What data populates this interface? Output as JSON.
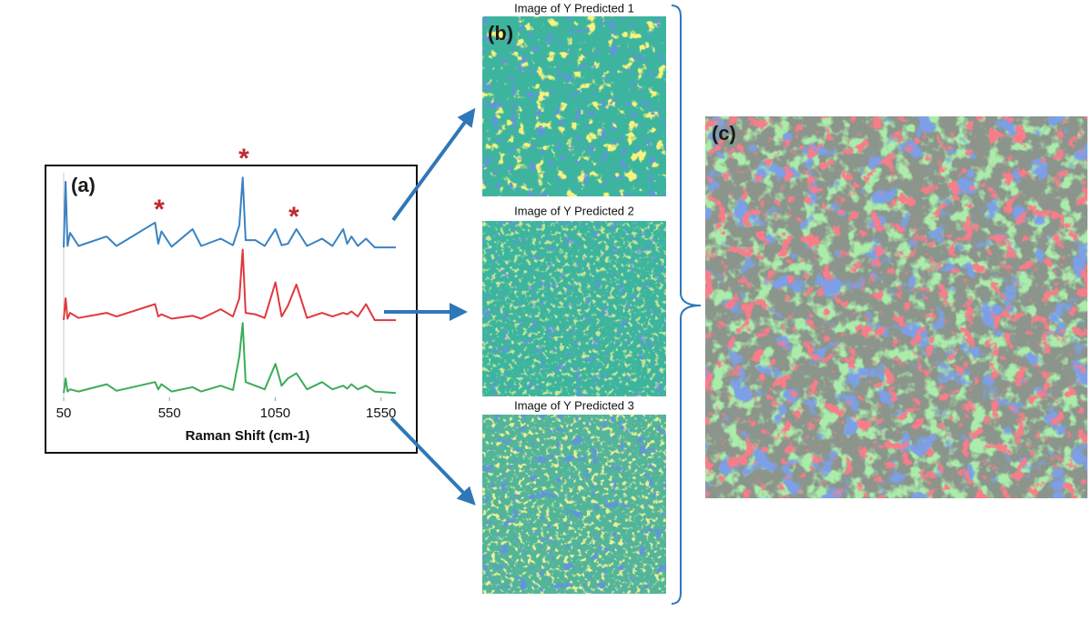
{
  "chart_data": {
    "type": "line",
    "panel_label": "(a)",
    "xlabel": "Raman Shift (cm-1)",
    "xlim": [
      50,
      1620
    ],
    "xticks": [
      50,
      550,
      1050,
      1550
    ],
    "ylim": [
      -0.06,
      3.0
    ],
    "annotations": [
      "*",
      "*",
      "*"
    ],
    "x": [
      50,
      59,
      68,
      80,
      120,
      253,
      300,
      482,
      497,
      512,
      560,
      659,
      700,
      792,
      850,
      880,
      896,
      910,
      956,
      1000,
      1051,
      1080,
      1110,
      1150,
      1200,
      1271,
      1320,
      1371,
      1390,
      1410,
      1440,
      1479,
      1520,
      1620
    ],
    "series": [
      {
        "color": "#3a82c4",
        "values": [
          2.0,
          2.9,
          2.02,
          2.2,
          2.02,
          2.15,
          2.02,
          2.34,
          2.05,
          2.22,
          2.01,
          2.25,
          2.02,
          2.12,
          2.03,
          2.3,
          2.96,
          2.1,
          2.1,
          2.02,
          2.25,
          2.03,
          2.05,
          2.25,
          2.02,
          2.12,
          2.02,
          2.25,
          2.05,
          2.15,
          2.02,
          2.12,
          2.0,
          2.0
        ]
      },
      {
        "color": "#e0393e",
        "values": [
          1.0,
          1.3,
          1.02,
          1.1,
          1.03,
          1.1,
          1.05,
          1.22,
          1.05,
          1.08,
          1.02,
          1.06,
          1.02,
          1.15,
          1.05,
          1.3,
          1.97,
          1.1,
          1.08,
          1.03,
          1.52,
          1.05,
          1.2,
          1.49,
          1.03,
          1.1,
          1.05,
          1.1,
          1.08,
          1.12,
          1.05,
          1.22,
          1.0,
          1.0
        ]
      },
      {
        "color": "#3cac5a",
        "values": [
          0,
          0.2,
          0.02,
          0.05,
          0.02,
          0.12,
          0.03,
          0.15,
          0.05,
          0.12,
          0.02,
          0.08,
          0.02,
          0.1,
          0.04,
          0.5,
          0.96,
          0.15,
          0.1,
          0.05,
          0.4,
          0.1,
          0.2,
          0.27,
          0.05,
          0.15,
          0.05,
          0.1,
          0.06,
          0.12,
          0.05,
          0.1,
          0.02,
          0
        ]
      }
    ]
  },
  "panels": {
    "b": {
      "label": "(b)",
      "titles": [
        "Image of Y Predicted 1",
        "Image of Y Predicted 2",
        "Image of Y Predicted 3"
      ]
    },
    "c": {
      "label": "(c)"
    }
  }
}
